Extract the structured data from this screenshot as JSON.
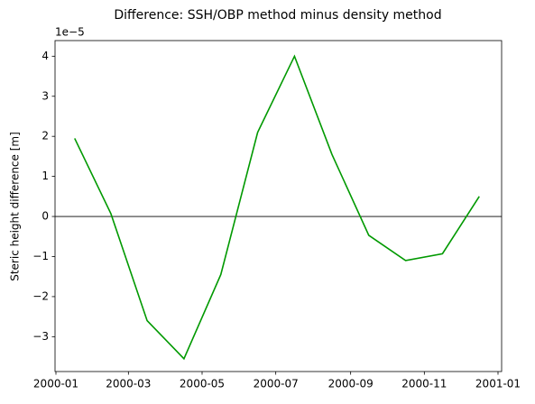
{
  "chart_data": {
    "type": "line",
    "title": "Difference: SSH/OBP method minus density method",
    "ylabel": "Steric height difference [m]",
    "y_offset_label": "1e−5",
    "x": [
      "2000-01",
      "2000-02",
      "2000-03",
      "2000-04",
      "2000-05",
      "2000-06",
      "2000-07",
      "2000-08",
      "2000-09",
      "2000-10",
      "2000-11",
      "2000-12"
    ],
    "series": [
      {
        "color": "#009900",
        "values": [
          1.95,
          0.07,
          -2.6,
          -3.55,
          -1.45,
          2.1,
          4.0,
          1.55,
          -0.47,
          -1.1,
          -0.93,
          0.5
        ]
      }
    ],
    "hline": 0,
    "xlim": [
      "2000-01",
      "2001-01"
    ],
    "xticks": [
      "2000-01",
      "2000-03",
      "2000-05",
      "2000-07",
      "2000-09",
      "2000-11",
      "2001-01"
    ],
    "ylim": [
      -3.87,
      4.39
    ],
    "yticks": [
      {
        "value": -3,
        "label": "−3"
      },
      {
        "value": -2,
        "label": "−2"
      },
      {
        "value": -1,
        "label": "−1"
      },
      0,
      1,
      2,
      3,
      4
    ],
    "grid": false
  }
}
